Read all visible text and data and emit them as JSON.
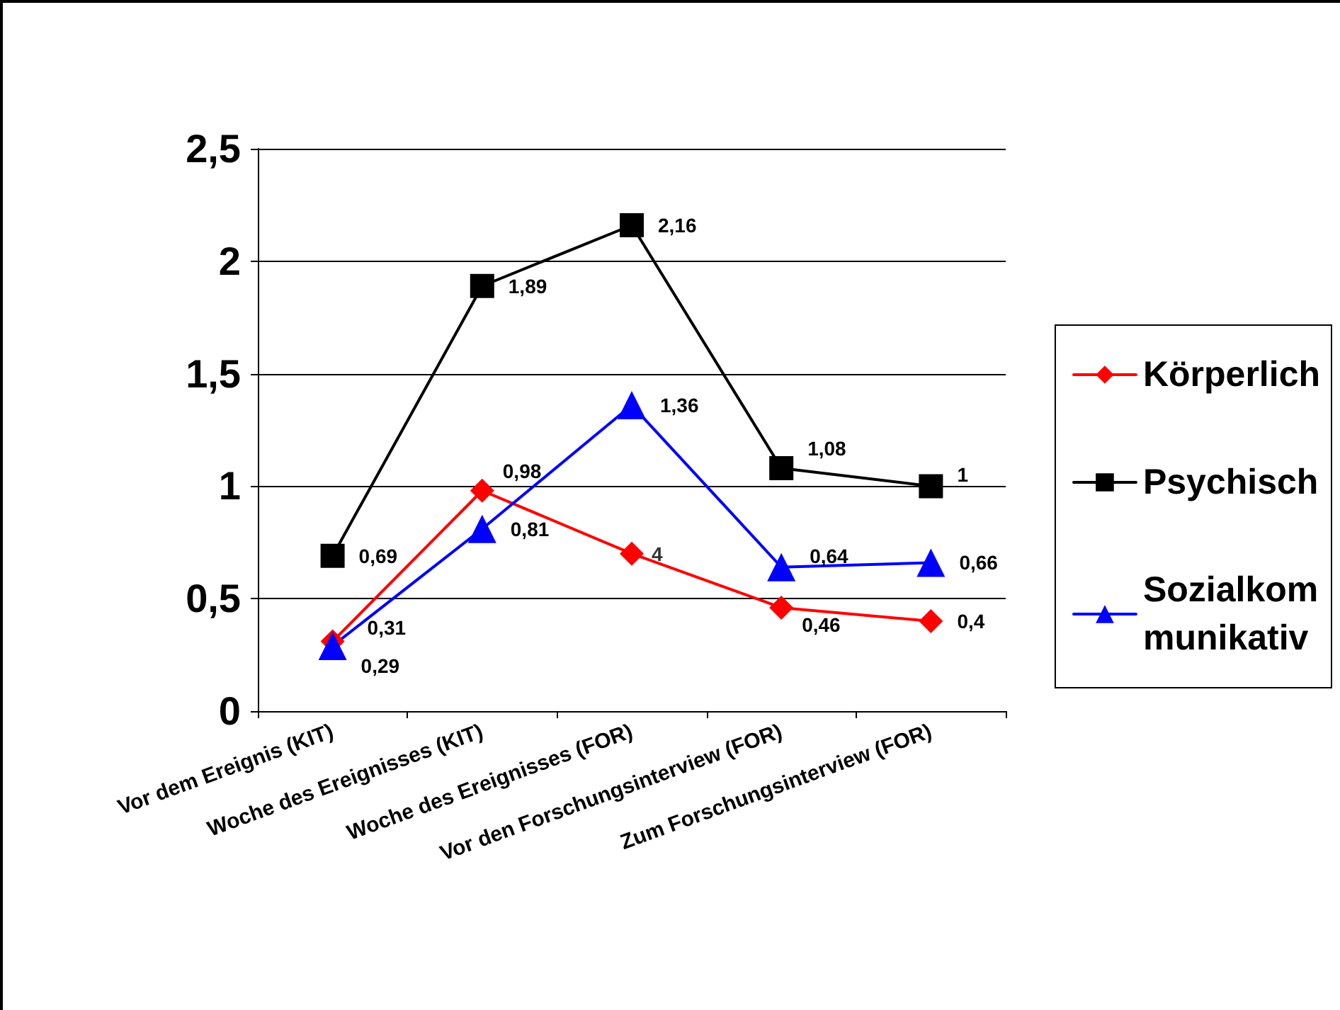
{
  "chart_data": {
    "type": "line",
    "categories": [
      "Vor dem Ereignis (KIT)",
      "Woche des Ereignisses (KIT)",
      "Woche des Ereignisses (FOR)",
      "Vor den Forschungsinterview (FOR)",
      "Zum Forschungsinterview (FOR)"
    ],
    "series": [
      {
        "name": "Körperlich",
        "color": "#ff0000",
        "marker": "diamond",
        "values": [
          0.31,
          0.98,
          0.7,
          0.46,
          0.4
        ],
        "value_labels": [
          "0,31",
          "0,98",
          null,
          "0,46",
          "0,4"
        ]
      },
      {
        "name": "Psychisch",
        "color": "#000000",
        "marker": "square",
        "values": [
          0.69,
          1.89,
          2.16,
          1.08,
          1
        ],
        "value_labels": [
          "0,69",
          "1,89",
          "2,16",
          "1,08",
          "1"
        ]
      },
      {
        "name": "Sozialkommunikativ",
        "color": "#0000ff",
        "marker": "triangle",
        "values": [
          0.29,
          0.81,
          1.36,
          0.64,
          0.66
        ],
        "value_labels": [
          "0,29",
          "0,81",
          "1,36",
          "0,64",
          "0,66"
        ]
      }
    ],
    "ylim": [
      0,
      2.5
    ],
    "yticks": [
      0,
      {
        "value": 0.5,
        "label": "0,5"
      },
      1,
      {
        "value": 1.5,
        "label": "1,5"
      },
      2,
      {
        "value": 2.5,
        "label": "2,5"
      }
    ],
    "annotations": [
      {
        "text": "4",
        "x": "Woche des Ereignisses (FOR)",
        "y": 0.7
      }
    ],
    "grid": "y",
    "legend": "right",
    "line_style": "solid"
  }
}
